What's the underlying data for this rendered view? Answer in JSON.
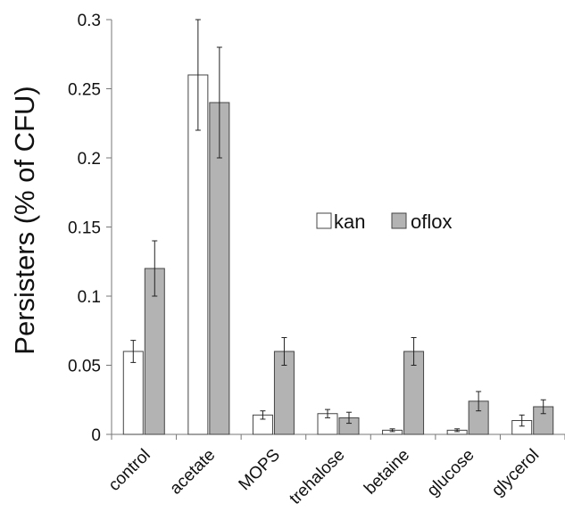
{
  "chart_data": {
    "type": "bar",
    "ylabel": "Persisters (% of CFU)",
    "xlabel": "",
    "categories": [
      "control",
      "acetate",
      "MOPS",
      "trehalose",
      "betaine",
      "glucose",
      "glycerol"
    ],
    "ylim": [
      0,
      0.3
    ],
    "yticks": [
      0,
      0.05,
      0.1,
      0.15,
      0.2,
      0.25,
      0.3
    ],
    "ytick_labels": [
      "0",
      "0.05",
      "0.1",
      "0.15",
      "0.2",
      "0.25",
      "0.3"
    ],
    "grid": false,
    "legend_position": "center-right",
    "series": [
      {
        "name": "kan",
        "color": "#ffffff",
        "values": [
          0.06,
          0.26,
          0.014,
          0.015,
          0.003,
          0.003,
          0.01
        ],
        "errors": [
          0.008,
          0.04,
          0.003,
          0.003,
          0.001,
          0.001,
          0.004
        ]
      },
      {
        "name": "oflox",
        "color": "#b3b3b3",
        "values": [
          0.12,
          0.24,
          0.06,
          0.012,
          0.06,
          0.024,
          0.02
        ],
        "errors": [
          0.02,
          0.04,
          0.01,
          0.004,
          0.01,
          0.007,
          0.005
        ]
      }
    ]
  }
}
